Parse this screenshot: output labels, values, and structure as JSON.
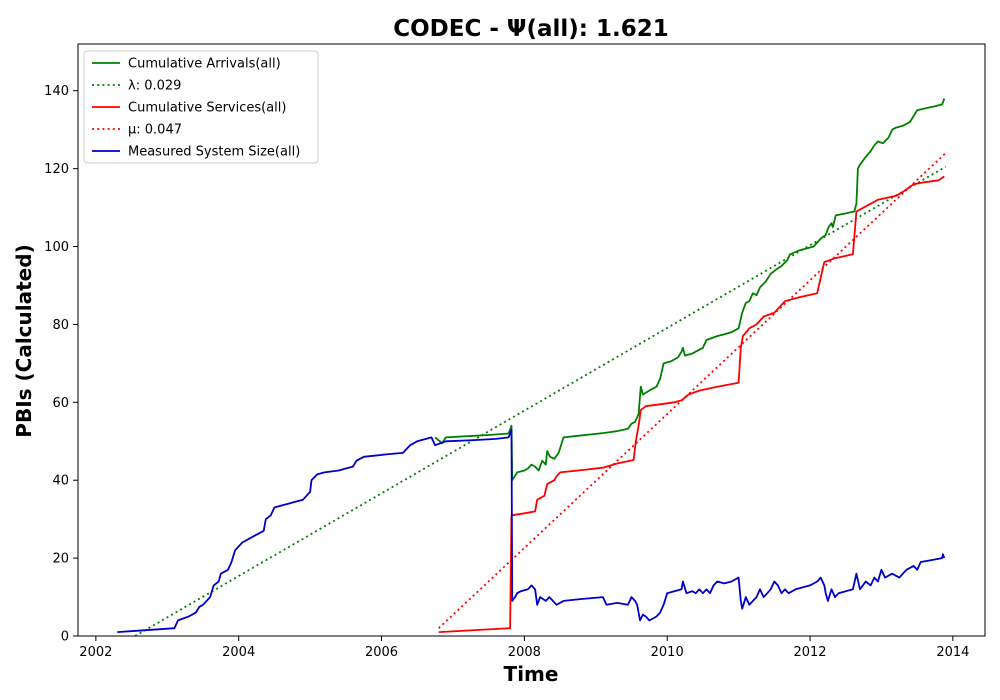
{
  "chart_data": {
    "type": "line",
    "title": "CODEC -  Ψ(all): 1.621",
    "xlabel": "Time",
    "ylabel": "PBIs (Calculated)",
    "xlim": [
      2001.75,
      2014.45
    ],
    "ylim": [
      0,
      152
    ],
    "x_ticks": [
      2002,
      2004,
      2006,
      2008,
      2010,
      2012,
      2014
    ],
    "y_ticks": [
      0,
      20,
      40,
      60,
      80,
      100,
      120,
      140
    ],
    "grid": false,
    "legend_position": "top-left",
    "series": [
      {
        "name": "Cumulative Arrivals(all)",
        "style": "solid",
        "color": "#008000",
        "points": [
          [
            2006.75,
            51
          ],
          [
            2006.85,
            49.5
          ],
          [
            2006.9,
            51
          ],
          [
            2007.2,
            51.3
          ],
          [
            2007.5,
            51.6
          ],
          [
            2007.78,
            52
          ],
          [
            2007.8,
            53
          ],
          [
            2007.82,
            54
          ],
          [
            2007.83,
            40
          ],
          [
            2007.9,
            42
          ],
          [
            2008.0,
            42.5
          ],
          [
            2008.05,
            43
          ],
          [
            2008.1,
            44
          ],
          [
            2008.15,
            43.5
          ],
          [
            2008.2,
            42.5
          ],
          [
            2008.25,
            45
          ],
          [
            2008.3,
            44
          ],
          [
            2008.32,
            47.5
          ],
          [
            2008.36,
            46
          ],
          [
            2008.42,
            45.5
          ],
          [
            2008.48,
            47
          ],
          [
            2008.55,
            51
          ],
          [
            2008.7,
            51.3
          ],
          [
            2008.9,
            51.7
          ],
          [
            2009.1,
            52.1
          ],
          [
            2009.3,
            52.6
          ],
          [
            2009.45,
            53.2
          ],
          [
            2009.5,
            54.5
          ],
          [
            2009.55,
            55
          ],
          [
            2009.6,
            57
          ],
          [
            2009.63,
            64
          ],
          [
            2009.66,
            62
          ],
          [
            2009.75,
            63
          ],
          [
            2009.85,
            64
          ],
          [
            2009.9,
            66
          ],
          [
            2009.95,
            70
          ],
          [
            2010.05,
            70.5
          ],
          [
            2010.15,
            71.5
          ],
          [
            2010.2,
            73
          ],
          [
            2010.22,
            74
          ],
          [
            2010.25,
            72
          ],
          [
            2010.35,
            72.5
          ],
          [
            2010.45,
            73.5
          ],
          [
            2010.5,
            74
          ],
          [
            2010.55,
            76
          ],
          [
            2010.7,
            77
          ],
          [
            2010.8,
            77.5
          ],
          [
            2010.9,
            78
          ],
          [
            2011.0,
            79
          ],
          [
            2011.05,
            83
          ],
          [
            2011.1,
            85.5
          ],
          [
            2011.15,
            86
          ],
          [
            2011.2,
            88
          ],
          [
            2011.25,
            87.5
          ],
          [
            2011.3,
            89.5
          ],
          [
            2011.38,
            91
          ],
          [
            2011.45,
            93
          ],
          [
            2011.52,
            94
          ],
          [
            2011.6,
            95
          ],
          [
            2011.68,
            96.5
          ],
          [
            2011.72,
            98
          ],
          [
            2011.85,
            99
          ],
          [
            2011.95,
            99.5
          ],
          [
            2012.05,
            100
          ],
          [
            2012.15,
            102
          ],
          [
            2012.22,
            103
          ],
          [
            2012.26,
            105
          ],
          [
            2012.3,
            106
          ],
          [
            2012.32,
            105
          ],
          [
            2012.36,
            108
          ],
          [
            2012.5,
            108.5
          ],
          [
            2012.62,
            109
          ],
          [
            2012.65,
            111
          ],
          [
            2012.67,
            120
          ],
          [
            2012.7,
            121
          ],
          [
            2012.78,
            123
          ],
          [
            2012.85,
            124.5
          ],
          [
            2012.9,
            126
          ],
          [
            2012.95,
            127
          ],
          [
            2013.02,
            126.5
          ],
          [
            2013.1,
            128
          ],
          [
            2013.15,
            130
          ],
          [
            2013.2,
            130.5
          ],
          [
            2013.3,
            131
          ],
          [
            2013.4,
            132
          ],
          [
            2013.45,
            133.5
          ],
          [
            2013.5,
            135
          ],
          [
            2013.62,
            135.5
          ],
          [
            2013.75,
            136
          ],
          [
            2013.85,
            136.5
          ],
          [
            2013.88,
            138
          ]
        ]
      },
      {
        "name": "λ: 0.029",
        "style": "dotted",
        "color": "#008000",
        "points": [
          [
            2002.55,
            0
          ],
          [
            2013.9,
            120.5
          ]
        ]
      },
      {
        "name": "Cumulative Services(all)",
        "style": "solid",
        "color": "#ff0000",
        "points": [
          [
            2006.8,
            1
          ],
          [
            2007.8,
            2
          ],
          [
            2007.82,
            31
          ],
          [
            2008.0,
            31.5
          ],
          [
            2008.15,
            32
          ],
          [
            2008.18,
            35
          ],
          [
            2008.28,
            36
          ],
          [
            2008.32,
            39
          ],
          [
            2008.42,
            40
          ],
          [
            2008.45,
            41
          ],
          [
            2008.5,
            42
          ],
          [
            2008.8,
            42.6
          ],
          [
            2009.1,
            43.2
          ],
          [
            2009.3,
            44.3
          ],
          [
            2009.53,
            45.2
          ],
          [
            2009.56,
            50
          ],
          [
            2009.6,
            54
          ],
          [
            2009.63,
            58
          ],
          [
            2009.7,
            59
          ],
          [
            2009.9,
            59.5
          ],
          [
            2010.1,
            60
          ],
          [
            2010.2,
            60.5
          ],
          [
            2010.3,
            62
          ],
          [
            2010.45,
            63
          ],
          [
            2010.7,
            64
          ],
          [
            2011.0,
            65
          ],
          [
            2011.03,
            74
          ],
          [
            2011.06,
            77
          ],
          [
            2011.15,
            79
          ],
          [
            2011.25,
            80
          ],
          [
            2011.35,
            82
          ],
          [
            2011.5,
            83
          ],
          [
            2011.55,
            84
          ],
          [
            2011.65,
            86
          ],
          [
            2011.85,
            87
          ],
          [
            2012.1,
            88
          ],
          [
            2012.15,
            92
          ],
          [
            2012.2,
            96
          ],
          [
            2012.35,
            97
          ],
          [
            2012.6,
            98
          ],
          [
            2012.65,
            109
          ],
          [
            2012.75,
            110
          ],
          [
            2012.85,
            111
          ],
          [
            2012.95,
            112
          ],
          [
            2013.2,
            113
          ],
          [
            2013.3,
            114
          ],
          [
            2013.45,
            116
          ],
          [
            2013.6,
            116.5
          ],
          [
            2013.8,
            117
          ],
          [
            2013.88,
            118
          ]
        ]
      },
      {
        "name": "μ: 0.047",
        "style": "dotted",
        "color": "#ff0000",
        "points": [
          [
            2006.8,
            2
          ],
          [
            2013.9,
            124
          ]
        ]
      },
      {
        "name": "Measured System Size(all)",
        "style": "solid",
        "color": "#0000cc",
        "points": [
          [
            2002.3,
            1
          ],
          [
            2002.7,
            1.5
          ],
          [
            2003.1,
            2
          ],
          [
            2003.15,
            4
          ],
          [
            2003.3,
            5
          ],
          [
            2003.4,
            6
          ],
          [
            2003.45,
            7.5
          ],
          [
            2003.5,
            8
          ],
          [
            2003.6,
            10
          ],
          [
            2003.65,
            13
          ],
          [
            2003.72,
            14
          ],
          [
            2003.75,
            16
          ],
          [
            2003.85,
            17
          ],
          [
            2003.9,
            19
          ],
          [
            2003.95,
            22
          ],
          [
            2004.05,
            24
          ],
          [
            2004.15,
            25
          ],
          [
            2004.25,
            26
          ],
          [
            2004.35,
            27
          ],
          [
            2004.38,
            30
          ],
          [
            2004.45,
            31
          ],
          [
            2004.5,
            33
          ],
          [
            2004.6,
            33.5
          ],
          [
            2004.7,
            34
          ],
          [
            2004.8,
            34.5
          ],
          [
            2004.9,
            35
          ],
          [
            2004.95,
            36
          ],
          [
            2005.0,
            37
          ],
          [
            2005.02,
            40
          ],
          [
            2005.1,
            41.5
          ],
          [
            2005.2,
            42
          ],
          [
            2005.4,
            42.5
          ],
          [
            2005.5,
            43
          ],
          [
            2005.6,
            43.5
          ],
          [
            2005.65,
            45
          ],
          [
            2005.75,
            46
          ],
          [
            2005.9,
            46.3
          ],
          [
            2006.1,
            46.7
          ],
          [
            2006.3,
            47
          ],
          [
            2006.4,
            49
          ],
          [
            2006.5,
            50
          ],
          [
            2006.7,
            51
          ],
          [
            2006.75,
            49
          ],
          [
            2006.9,
            50
          ],
          [
            2007.3,
            50.3
          ],
          [
            2007.6,
            50.6
          ],
          [
            2007.78,
            51
          ],
          [
            2007.8,
            52
          ],
          [
            2007.82,
            53
          ],
          [
            2007.83,
            9
          ],
          [
            2007.87,
            10
          ],
          [
            2007.9,
            11
          ],
          [
            2007.95,
            11.5
          ],
          [
            2008.05,
            12
          ],
          [
            2008.1,
            13
          ],
          [
            2008.15,
            12
          ],
          [
            2008.18,
            8
          ],
          [
            2008.22,
            10
          ],
          [
            2008.3,
            9
          ],
          [
            2008.35,
            10
          ],
          [
            2008.4,
            9
          ],
          [
            2008.45,
            8
          ],
          [
            2008.55,
            9
          ],
          [
            2008.8,
            9.5
          ],
          [
            2009.1,
            10
          ],
          [
            2009.15,
            8
          ],
          [
            2009.3,
            8.5
          ],
          [
            2009.45,
            8
          ],
          [
            2009.5,
            10
          ],
          [
            2009.55,
            9
          ],
          [
            2009.58,
            8
          ],
          [
            2009.6,
            6
          ],
          [
            2009.62,
            4
          ],
          [
            2009.66,
            5.5
          ],
          [
            2009.7,
            5
          ],
          [
            2009.75,
            4
          ],
          [
            2009.8,
            4.5
          ],
          [
            2009.85,
            5
          ],
          [
            2009.9,
            6
          ],
          [
            2009.95,
            8
          ],
          [
            2010.0,
            11
          ],
          [
            2010.1,
            11.5
          ],
          [
            2010.2,
            12
          ],
          [
            2010.22,
            14
          ],
          [
            2010.27,
            11
          ],
          [
            2010.35,
            11.5
          ],
          [
            2010.4,
            11
          ],
          [
            2010.45,
            12
          ],
          [
            2010.5,
            11
          ],
          [
            2010.55,
            12
          ],
          [
            2010.6,
            11
          ],
          [
            2010.65,
            13
          ],
          [
            2010.7,
            14
          ],
          [
            2010.8,
            13.5
          ],
          [
            2010.9,
            14
          ],
          [
            2011.0,
            15
          ],
          [
            2011.03,
            9
          ],
          [
            2011.05,
            7
          ],
          [
            2011.1,
            10
          ],
          [
            2011.15,
            8
          ],
          [
            2011.2,
            9
          ],
          [
            2011.25,
            10
          ],
          [
            2011.3,
            12
          ],
          [
            2011.35,
            10
          ],
          [
            2011.4,
            11
          ],
          [
            2011.45,
            12
          ],
          [
            2011.5,
            14
          ],
          [
            2011.55,
            13
          ],
          [
            2011.6,
            11
          ],
          [
            2011.65,
            12
          ],
          [
            2011.7,
            11
          ],
          [
            2011.8,
            12
          ],
          [
            2012.0,
            13
          ],
          [
            2012.1,
            14
          ],
          [
            2012.15,
            15
          ],
          [
            2012.2,
            13
          ],
          [
            2012.22,
            11
          ],
          [
            2012.25,
            9
          ],
          [
            2012.3,
            12
          ],
          [
            2012.35,
            10
          ],
          [
            2012.4,
            11
          ],
          [
            2012.5,
            11.5
          ],
          [
            2012.6,
            12
          ],
          [
            2012.65,
            16
          ],
          [
            2012.7,
            12
          ],
          [
            2012.78,
            14
          ],
          [
            2012.85,
            13
          ],
          [
            2012.9,
            15
          ],
          [
            2012.95,
            14
          ],
          [
            2013.0,
            17
          ],
          [
            2013.05,
            15
          ],
          [
            2013.15,
            16
          ],
          [
            2013.25,
            15
          ],
          [
            2013.35,
            17
          ],
          [
            2013.45,
            18
          ],
          [
            2013.5,
            17
          ],
          [
            2013.55,
            19
          ],
          [
            2013.7,
            19.5
          ],
          [
            2013.85,
            20
          ],
          [
            2013.86,
            21
          ],
          [
            2013.88,
            20
          ]
        ]
      }
    ]
  }
}
